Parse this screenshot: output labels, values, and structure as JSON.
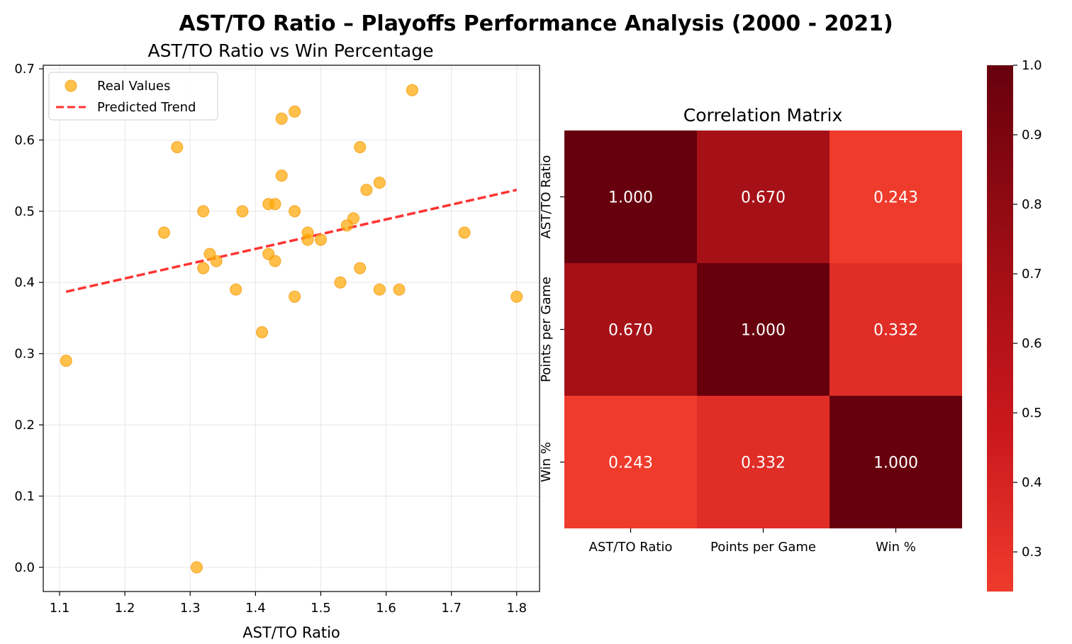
{
  "figure": {
    "title": "AST/TO Ratio – Playoffs Performance Analysis (2000 - 2021)"
  },
  "chart_data": [
    {
      "type": "scatter",
      "title": "AST/TO Ratio vs Win Percentage",
      "xlabel": "AST/TO Ratio",
      "ylabel": "",
      "xlim": [
        1.075,
        1.835
      ],
      "ylim": [
        -0.034,
        0.705
      ],
      "xticks": [
        "1.1",
        "1.2",
        "1.3",
        "1.4",
        "1.5",
        "1.6",
        "1.7",
        "1.8"
      ],
      "yticks": [
        "0.0",
        "0.1",
        "0.2",
        "0.3",
        "0.4",
        "0.5",
        "0.6",
        "0.7"
      ],
      "grid": true,
      "legend_position": "upper-left",
      "colors": {
        "points": "#ffa500",
        "trend": "#ff0000",
        "points_edge": "#f5a623"
      },
      "series": [
        {
          "name": "Real Values",
          "kind": "scatter",
          "points": [
            [
              1.11,
              0.29
            ],
            [
              1.26,
              0.47
            ],
            [
              1.28,
              0.59
            ],
            [
              1.31,
              0.0
            ],
            [
              1.32,
              0.42
            ],
            [
              1.32,
              0.5
            ],
            [
              1.33,
              0.44
            ],
            [
              1.34,
              0.43
            ],
            [
              1.37,
              0.39
            ],
            [
              1.38,
              0.5
            ],
            [
              1.41,
              0.33
            ],
            [
              1.42,
              0.44
            ],
            [
              1.42,
              0.51
            ],
            [
              1.43,
              0.43
            ],
            [
              1.43,
              0.51
            ],
            [
              1.44,
              0.55
            ],
            [
              1.44,
              0.63
            ],
            [
              1.46,
              0.38
            ],
            [
              1.46,
              0.5
            ],
            [
              1.46,
              0.64
            ],
            [
              1.48,
              0.46
            ],
            [
              1.48,
              0.47
            ],
            [
              1.5,
              0.46
            ],
            [
              1.53,
              0.4
            ],
            [
              1.54,
              0.48
            ],
            [
              1.55,
              0.49
            ],
            [
              1.56,
              0.42
            ],
            [
              1.56,
              0.59
            ],
            [
              1.57,
              0.53
            ],
            [
              1.59,
              0.39
            ],
            [
              1.59,
              0.54
            ],
            [
              1.62,
              0.39
            ],
            [
              1.64,
              0.67
            ],
            [
              1.72,
              0.47
            ],
            [
              1.8,
              0.38
            ]
          ]
        },
        {
          "name": "Predicted Trend",
          "kind": "line",
          "points": [
            [
              1.11,
              0.387
            ],
            [
              1.8,
              0.53
            ]
          ]
        }
      ]
    },
    {
      "type": "heatmap",
      "title": "Correlation Matrix",
      "labels": [
        "AST/TO Ratio",
        "Points per Game",
        "Win %"
      ],
      "values": [
        [
          1.0,
          0.67,
          0.243
        ],
        [
          0.67,
          1.0,
          0.332
        ],
        [
          0.243,
          0.332,
          1.0
        ]
      ],
      "annotations": [
        [
          "1.000",
          "0.670",
          "0.243"
        ],
        [
          "0.670",
          "1.000",
          "0.332"
        ],
        [
          "0.243",
          "0.332",
          "1.000"
        ]
      ],
      "colormap": "Reds",
      "colors": {
        "high": "#67000d",
        "mid": "#b01217",
        "low": "#ef3b2c",
        "annot_text": "#ffffff"
      },
      "colorbar": {
        "range": [
          0.243,
          1.0
        ],
        "ticks": [
          "0.3",
          "0.4",
          "0.5",
          "0.6",
          "0.7",
          "0.8",
          "0.9",
          "1.0"
        ]
      }
    }
  ]
}
